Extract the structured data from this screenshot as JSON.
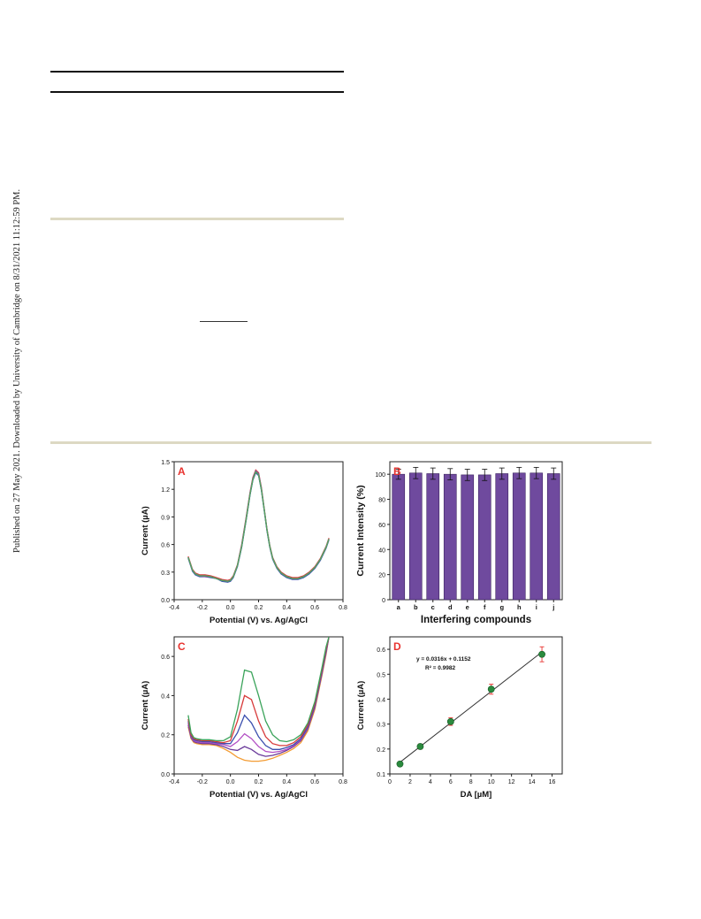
{
  "side_note": "Published on 27 May 2021. Downloaded by University of Cambridge on 8/31/2021 11:12:59 PM.",
  "colors": {
    "bar_fill": "#6f4a9e",
    "panel_label": "#e8332f",
    "point_fill": "#2b8a3e",
    "rule_beige": "#ddd9c3"
  },
  "chart_data": [
    {
      "panel": "A",
      "type": "line",
      "xlabel": "Potential (V) vs. Ag/AgCl",
      "ylabel": "Current (µA)",
      "xlim": [
        -0.4,
        0.8
      ],
      "ylim": [
        0.0,
        1.5
      ],
      "xticks": [
        "-0.4",
        "-0.2",
        "0.0",
        "0.2",
        "0.4",
        "0.6",
        "0.8"
      ],
      "yticks": [
        "0.0",
        "0.3",
        "0.6",
        "0.9",
        "1.2",
        "1.5"
      ],
      "series": [
        {
          "color": "#2d7d4a",
          "x": [
            -0.3,
            -0.27,
            -0.25,
            -0.22,
            -0.18,
            -0.14,
            -0.1,
            -0.06,
            -0.02,
            0.0,
            0.02,
            0.05,
            0.08,
            0.11,
            0.14,
            0.16,
            0.18,
            0.2,
            0.22,
            0.24,
            0.26,
            0.28,
            0.3,
            0.33,
            0.36,
            0.4,
            0.44,
            0.48,
            0.52,
            0.56,
            0.6,
            0.64,
            0.68,
            0.7
          ],
          "y": [
            0.46,
            0.32,
            0.28,
            0.26,
            0.26,
            0.25,
            0.23,
            0.21,
            0.2,
            0.21,
            0.25,
            0.37,
            0.58,
            0.86,
            1.15,
            1.31,
            1.39,
            1.36,
            1.2,
            0.98,
            0.76,
            0.58,
            0.45,
            0.35,
            0.29,
            0.25,
            0.23,
            0.23,
            0.25,
            0.29,
            0.35,
            0.44,
            0.57,
            0.66
          ]
        },
        {
          "color": "#d73a3a",
          "x": [
            -0.3,
            -0.27,
            -0.25,
            -0.22,
            -0.18,
            -0.14,
            -0.1,
            -0.06,
            -0.02,
            0.0,
            0.02,
            0.05,
            0.08,
            0.11,
            0.14,
            0.16,
            0.18,
            0.2,
            0.22,
            0.24,
            0.26,
            0.28,
            0.3,
            0.33,
            0.36,
            0.4,
            0.44,
            0.48,
            0.52,
            0.56,
            0.6,
            0.64,
            0.68,
            0.7
          ],
          "y": [
            0.47,
            0.33,
            0.29,
            0.27,
            0.27,
            0.26,
            0.24,
            0.22,
            0.21,
            0.22,
            0.26,
            0.38,
            0.6,
            0.88,
            1.17,
            1.33,
            1.41,
            1.38,
            1.22,
            0.99,
            0.77,
            0.59,
            0.46,
            0.36,
            0.3,
            0.26,
            0.24,
            0.24,
            0.26,
            0.3,
            0.36,
            0.45,
            0.58,
            0.67
          ]
        },
        {
          "color": "#3b4fae",
          "x": [
            -0.3,
            -0.27,
            -0.25,
            -0.22,
            -0.18,
            -0.14,
            -0.1,
            -0.06,
            -0.02,
            0.0,
            0.02,
            0.05,
            0.08,
            0.11,
            0.14,
            0.16,
            0.18,
            0.2,
            0.22,
            0.24,
            0.26,
            0.28,
            0.3,
            0.33,
            0.36,
            0.4,
            0.44,
            0.48,
            0.52,
            0.56,
            0.6,
            0.64,
            0.68,
            0.7
          ],
          "y": [
            0.45,
            0.31,
            0.27,
            0.25,
            0.25,
            0.24,
            0.23,
            0.2,
            0.19,
            0.2,
            0.24,
            0.36,
            0.57,
            0.85,
            1.14,
            1.3,
            1.38,
            1.35,
            1.19,
            0.97,
            0.75,
            0.57,
            0.44,
            0.34,
            0.28,
            0.24,
            0.22,
            0.22,
            0.24,
            0.28,
            0.34,
            0.43,
            0.56,
            0.65
          ]
        },
        {
          "color": "#8e44ad",
          "x": [
            -0.3,
            -0.27,
            -0.25,
            -0.22,
            -0.18,
            -0.14,
            -0.1,
            -0.06,
            -0.02,
            0.0,
            0.02,
            0.05,
            0.08,
            0.11,
            0.14,
            0.16,
            0.18,
            0.2,
            0.22,
            0.24,
            0.26,
            0.28,
            0.3,
            0.33,
            0.36,
            0.4,
            0.44,
            0.48,
            0.52,
            0.56,
            0.6,
            0.64,
            0.68,
            0.7
          ],
          "y": [
            0.46,
            0.32,
            0.28,
            0.26,
            0.25,
            0.25,
            0.23,
            0.21,
            0.2,
            0.21,
            0.25,
            0.37,
            0.59,
            0.87,
            1.16,
            1.32,
            1.4,
            1.37,
            1.21,
            0.98,
            0.76,
            0.58,
            0.45,
            0.35,
            0.29,
            0.25,
            0.23,
            0.23,
            0.25,
            0.29,
            0.35,
            0.44,
            0.57,
            0.66
          ]
        },
        {
          "color": "#27b2c0",
          "x": [
            -0.3,
            -0.27,
            -0.25,
            -0.22,
            -0.18,
            -0.14,
            -0.1,
            -0.06,
            -0.02,
            0.0,
            0.02,
            0.05,
            0.08,
            0.11,
            0.14,
            0.16,
            0.18,
            0.2,
            0.22,
            0.24,
            0.26,
            0.28,
            0.3,
            0.33,
            0.36,
            0.4,
            0.44,
            0.48,
            0.52,
            0.56,
            0.6,
            0.64,
            0.68,
            0.7
          ],
          "y": [
            0.46,
            0.32,
            0.28,
            0.26,
            0.26,
            0.25,
            0.23,
            0.21,
            0.2,
            0.21,
            0.25,
            0.37,
            0.58,
            0.86,
            1.15,
            1.31,
            1.39,
            1.36,
            1.2,
            0.98,
            0.76,
            0.58,
            0.45,
            0.35,
            0.29,
            0.25,
            0.23,
            0.23,
            0.25,
            0.29,
            0.35,
            0.44,
            0.57,
            0.66
          ]
        },
        {
          "color": "#5aa05a",
          "x": [
            -0.3,
            -0.27,
            -0.25,
            -0.22,
            -0.18,
            -0.14,
            -0.1,
            -0.06,
            -0.02,
            0.0,
            0.02,
            0.05,
            0.08,
            0.11,
            0.14,
            0.16,
            0.18,
            0.2,
            0.22,
            0.24,
            0.26,
            0.28,
            0.3,
            0.33,
            0.36,
            0.4,
            0.44,
            0.48,
            0.52,
            0.56,
            0.6,
            0.64,
            0.68,
            0.7
          ],
          "y": [
            0.46,
            0.32,
            0.28,
            0.26,
            0.26,
            0.25,
            0.23,
            0.21,
            0.2,
            0.21,
            0.25,
            0.37,
            0.58,
            0.86,
            1.15,
            1.31,
            1.39,
            1.36,
            1.2,
            0.98,
            0.76,
            0.58,
            0.45,
            0.35,
            0.29,
            0.25,
            0.23,
            0.23,
            0.25,
            0.29,
            0.35,
            0.44,
            0.57,
            0.66
          ]
        }
      ]
    },
    {
      "panel": "B",
      "type": "bar",
      "xlabel": "Interfering compounds",
      "ylabel": "Current Intensity (%)",
      "ylim": [
        0,
        110
      ],
      "yticks": [
        "0",
        "20",
        "40",
        "60",
        "80",
        "100"
      ],
      "categories": [
        "a",
        "b",
        "c",
        "d",
        "e",
        "f",
        "g",
        "h",
        "i",
        "j"
      ],
      "values": [
        100,
        101,
        100.5,
        100,
        99.5,
        99.5,
        100.5,
        101,
        101,
        100.5
      ],
      "errors": [
        4,
        4.5,
        4.5,
        4.5,
        4.5,
        4.5,
        4.5,
        4.5,
        4.5,
        4.5
      ]
    },
    {
      "panel": "C",
      "type": "line",
      "xlabel": "Potential (V) vs. Ag/AgCl",
      "ylabel": "Current (µA)",
      "xlim": [
        -0.4,
        0.8
      ],
      "ylim": [
        0.0,
        0.7
      ],
      "xticks": [
        "-0.4",
        "-0.2",
        "0.0",
        "0.2",
        "0.4",
        "0.6",
        "0.8"
      ],
      "yticks": [
        "0.0",
        "0.2",
        "0.4",
        "0.6"
      ],
      "series": [
        {
          "color": "#f39c34",
          "x": [
            -0.3,
            -0.28,
            -0.26,
            -0.24,
            -0.2,
            -0.15,
            -0.1,
            -0.05,
            0.0,
            0.05,
            0.1,
            0.15,
            0.2,
            0.25,
            0.3,
            0.35,
            0.4,
            0.45,
            0.5,
            0.55,
            0.6,
            0.65,
            0.68,
            0.7
          ],
          "y": [
            0.24,
            0.18,
            0.16,
            0.155,
            0.15,
            0.15,
            0.145,
            0.13,
            0.11,
            0.085,
            0.07,
            0.065,
            0.065,
            0.07,
            0.08,
            0.095,
            0.11,
            0.13,
            0.16,
            0.22,
            0.33,
            0.5,
            0.61,
            0.7
          ]
        },
        {
          "color": "#6a3a9a",
          "x": [
            -0.3,
            -0.28,
            -0.26,
            -0.24,
            -0.2,
            -0.15,
            -0.1,
            -0.05,
            0.0,
            0.05,
            0.1,
            0.15,
            0.2,
            0.25,
            0.3,
            0.35,
            0.4,
            0.45,
            0.5,
            0.55,
            0.6,
            0.65,
            0.68,
            0.7
          ],
          "y": [
            0.25,
            0.185,
            0.165,
            0.16,
            0.155,
            0.155,
            0.15,
            0.14,
            0.125,
            0.12,
            0.14,
            0.125,
            0.1,
            0.09,
            0.095,
            0.105,
            0.12,
            0.14,
            0.17,
            0.23,
            0.34,
            0.51,
            0.62,
            0.7
          ]
        },
        {
          "color": "#b24fc4",
          "x": [
            -0.3,
            -0.28,
            -0.26,
            -0.24,
            -0.2,
            -0.15,
            -0.1,
            -0.05,
            0.0,
            0.05,
            0.1,
            0.15,
            0.2,
            0.25,
            0.3,
            0.35,
            0.4,
            0.45,
            0.5,
            0.55,
            0.6,
            0.65,
            0.68,
            0.7
          ],
          "y": [
            0.26,
            0.19,
            0.17,
            0.165,
            0.16,
            0.16,
            0.155,
            0.15,
            0.14,
            0.165,
            0.205,
            0.18,
            0.14,
            0.115,
            0.11,
            0.115,
            0.125,
            0.145,
            0.175,
            0.235,
            0.345,
            0.515,
            0.625,
            0.7
          ]
        },
        {
          "color": "#3b4fae",
          "x": [
            -0.3,
            -0.28,
            -0.26,
            -0.24,
            -0.2,
            -0.15,
            -0.1,
            -0.05,
            0.0,
            0.05,
            0.1,
            0.15,
            0.2,
            0.25,
            0.3,
            0.35,
            0.4,
            0.45,
            0.5,
            0.55,
            0.6,
            0.65,
            0.68,
            0.7
          ],
          "y": [
            0.27,
            0.195,
            0.175,
            0.17,
            0.165,
            0.165,
            0.16,
            0.155,
            0.155,
            0.21,
            0.3,
            0.26,
            0.19,
            0.145,
            0.125,
            0.125,
            0.135,
            0.15,
            0.18,
            0.24,
            0.35,
            0.52,
            0.63,
            0.7
          ]
        },
        {
          "color": "#d73a3a",
          "x": [
            -0.3,
            -0.28,
            -0.26,
            -0.24,
            -0.2,
            -0.15,
            -0.1,
            -0.05,
            0.0,
            0.05,
            0.1,
            0.15,
            0.2,
            0.25,
            0.3,
            0.35,
            0.4,
            0.45,
            0.5,
            0.55,
            0.6,
            0.65,
            0.68,
            0.7
          ],
          "y": [
            0.28,
            0.2,
            0.18,
            0.175,
            0.17,
            0.17,
            0.165,
            0.16,
            0.17,
            0.27,
            0.4,
            0.38,
            0.27,
            0.19,
            0.155,
            0.145,
            0.145,
            0.16,
            0.19,
            0.25,
            0.36,
            0.53,
            0.64,
            0.7
          ]
        },
        {
          "color": "#3aa35a",
          "x": [
            -0.3,
            -0.28,
            -0.26,
            -0.24,
            -0.2,
            -0.15,
            -0.1,
            -0.05,
            0.0,
            0.05,
            0.1,
            0.15,
            0.2,
            0.25,
            0.3,
            0.35,
            0.4,
            0.45,
            0.5,
            0.55,
            0.6,
            0.65,
            0.68,
            0.7
          ],
          "y": [
            0.3,
            0.21,
            0.185,
            0.18,
            0.175,
            0.175,
            0.17,
            0.17,
            0.19,
            0.33,
            0.53,
            0.52,
            0.4,
            0.27,
            0.2,
            0.17,
            0.165,
            0.175,
            0.2,
            0.26,
            0.37,
            0.54,
            0.65,
            0.7
          ]
        }
      ]
    },
    {
      "panel": "D",
      "type": "scatter",
      "xlabel": "DA [µM]",
      "ylabel": "Current (µA)",
      "xlim": [
        0,
        17
      ],
      "ylim": [
        0.1,
        0.65
      ],
      "xticks": [
        "0",
        "2",
        "4",
        "6",
        "8",
        "10",
        "12",
        "14",
        "16"
      ],
      "yticks": [
        "0.1",
        "0.2",
        "0.3",
        "0.4",
        "0.5",
        "0.6"
      ],
      "x": [
        1,
        3,
        6,
        10,
        15
      ],
      "y": [
        0.14,
        0.21,
        0.31,
        0.44,
        0.58
      ],
      "errors": [
        0.008,
        0.01,
        0.015,
        0.02,
        0.03
      ],
      "fit": {
        "slope": 0.0316,
        "intercept": 0.1152
      },
      "equation": "y = 0.0316x + 0.1152",
      "r2": "R² = 0.9982"
    }
  ]
}
